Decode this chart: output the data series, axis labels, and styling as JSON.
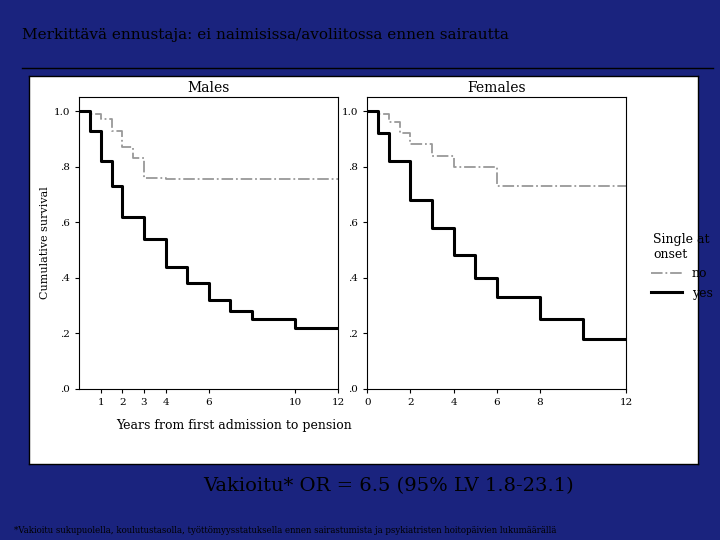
{
  "title": "Merkittävä ennustaja: ei naimisissa/avoliitossa ennen sairautta",
  "subtitle_or": "Vakioitu* OR = 6.5 (95% LV 1.8-23.1)",
  "footnote": "*Vakioitu sukupuolella, koulutustasolla, työttömyysstatuksella ennen sairastumista ja psykiatristen hoitopäivien lukumäärällä",
  "xlabel": "Years from first admission to pension",
  "ylabel": "Cumulative survival",
  "panel_left_title": "Males",
  "panel_right_title": "Females",
  "legend_title": "Single at\nonset",
  "legend_no": "no",
  "legend_yes": "yes",
  "bg_color": "#FFFFFF",
  "outer_bg_color": "#1a237e",
  "line_color_yes": "#000000",
  "line_color_no": "#999999",
  "males_no_x": [
    0,
    0.5,
    0.5,
    1,
    1,
    1.5,
    1.5,
    2,
    2,
    2.5,
    2.5,
    3,
    3,
    4,
    4,
    12
  ],
  "males_no_y": [
    1.0,
    1.0,
    0.99,
    0.99,
    0.97,
    0.97,
    0.93,
    0.93,
    0.87,
    0.87,
    0.83,
    0.83,
    0.76,
    0.76,
    0.755,
    0.755
  ],
  "males_yes_x": [
    0,
    0.5,
    0.5,
    1,
    1,
    1.5,
    1.5,
    2,
    2,
    3,
    3,
    4,
    4,
    5,
    5,
    6,
    6,
    7,
    7,
    8,
    8,
    10,
    10,
    12
  ],
  "males_yes_y": [
    1.0,
    1.0,
    0.93,
    0.93,
    0.82,
    0.82,
    0.73,
    0.73,
    0.62,
    0.62,
    0.54,
    0.54,
    0.44,
    0.44,
    0.38,
    0.38,
    0.32,
    0.32,
    0.28,
    0.28,
    0.25,
    0.25,
    0.22,
    0.22
  ],
  "females_no_x": [
    0,
    0.5,
    0.5,
    1,
    1,
    1.5,
    1.5,
    2,
    2,
    3,
    3,
    4,
    4,
    6,
    6,
    12
  ],
  "females_no_y": [
    1.0,
    1.0,
    0.99,
    0.99,
    0.96,
    0.96,
    0.92,
    0.92,
    0.88,
    0.88,
    0.84,
    0.84,
    0.8,
    0.8,
    0.73,
    0.73
  ],
  "females_yes_x": [
    0,
    0.5,
    0.5,
    1,
    1,
    2,
    2,
    3,
    3,
    4,
    4,
    5,
    5,
    6,
    6,
    8,
    8,
    10,
    10,
    12
  ],
  "females_yes_y": [
    1.0,
    1.0,
    0.92,
    0.92,
    0.82,
    0.82,
    0.68,
    0.68,
    0.58,
    0.58,
    0.48,
    0.48,
    0.4,
    0.4,
    0.33,
    0.33,
    0.25,
    0.25,
    0.18,
    0.18
  ],
  "males_xlim": [
    0,
    12
  ],
  "males_ylim": [
    0.0,
    1.05
  ],
  "males_xticks": [
    1,
    2,
    4,
    3,
    6,
    10,
    12
  ],
  "males_xtick_labels": [
    "1",
    "2",
    "4",
    "3",
    "6",
    "10",
    "12"
  ],
  "females_xticks": [
    0,
    2,
    4,
    6,
    8,
    12
  ],
  "females_xtick_labels": [
    "0",
    "2",
    "4",
    "6",
    "8",
    "12"
  ],
  "yticks": [
    0.0,
    0.2,
    0.4,
    0.6,
    0.8,
    1.0
  ],
  "ytick_labels": [
    ".0",
    ".2",
    ".4",
    ".6",
    ".8",
    "1.0"
  ]
}
